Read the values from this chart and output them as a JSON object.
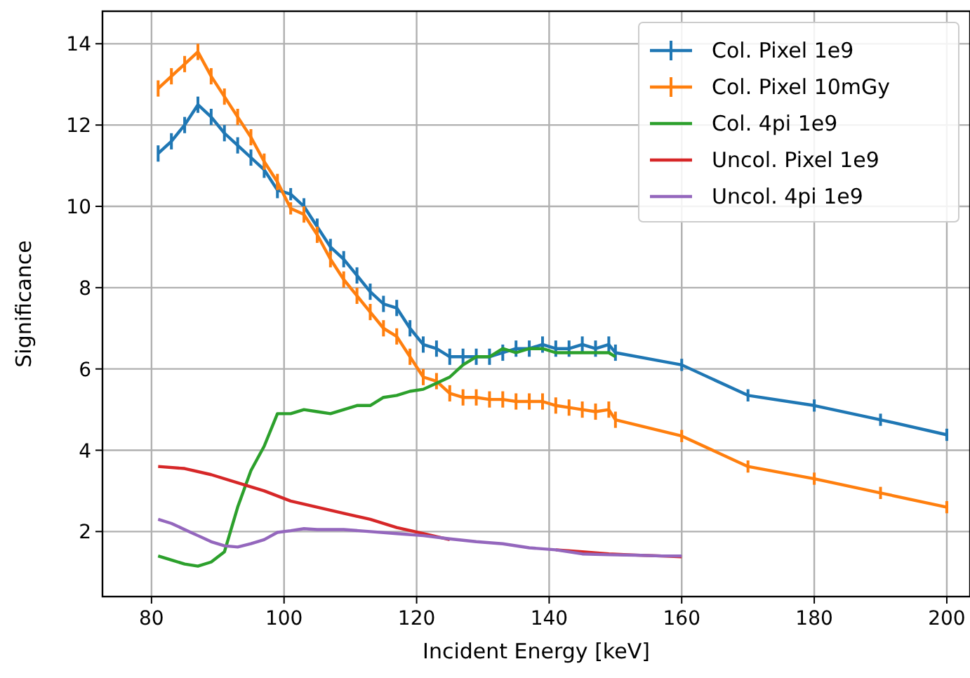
{
  "chart_data": {
    "type": "line",
    "xlabel": "Incident Energy [keV]",
    "ylabel": "Significance",
    "xlim": [
      72.6,
      203.5
    ],
    "ylim": [
      0.4,
      14.8
    ],
    "xticks": [
      80,
      100,
      120,
      140,
      160,
      180,
      200
    ],
    "yticks": [
      2,
      4,
      6,
      8,
      10,
      12,
      14
    ],
    "grid": true,
    "legend": "top right",
    "marker": "none",
    "line_style": "solid",
    "series": [
      {
        "name": "Col. Pixel 1e9",
        "color": "#1f77b4",
        "x": [
          81,
          83,
          85,
          87,
          89,
          91,
          93,
          95,
          97,
          99,
          101,
          103,
          105,
          107,
          109,
          111,
          113,
          115,
          117,
          119,
          121,
          123,
          125,
          127,
          129,
          131,
          133,
          135,
          137,
          139,
          141,
          143,
          145,
          147,
          149,
          150,
          160,
          170,
          180,
          190,
          200
        ],
        "values": [
          11.3,
          11.6,
          12.0,
          12.5,
          12.2,
          11.8,
          11.5,
          11.2,
          10.9,
          10.4,
          10.3,
          10.0,
          9.5,
          9.0,
          8.7,
          8.3,
          7.9,
          7.6,
          7.5,
          7.0,
          6.6,
          6.5,
          6.3,
          6.3,
          6.3,
          6.3,
          6.4,
          6.5,
          6.5,
          6.6,
          6.5,
          6.5,
          6.6,
          6.5,
          6.6,
          6.4,
          6.1,
          5.35,
          5.1,
          4.75,
          4.38
        ],
        "errors": [
          0.2,
          0.2,
          0.2,
          0.2,
          0.2,
          0.2,
          0.2,
          0.2,
          0.2,
          0.2,
          0.15,
          0.2,
          0.2,
          0.2,
          0.2,
          0.2,
          0.2,
          0.2,
          0.2,
          0.2,
          0.2,
          0.2,
          0.2,
          0.2,
          0.2,
          0.2,
          0.2,
          0.2,
          0.2,
          0.2,
          0.2,
          0.2,
          0.2,
          0.2,
          0.2,
          0.2,
          0.15,
          0.15,
          0.15,
          0.15,
          0.15
        ]
      },
      {
        "name": "Col. Pixel 10mGy",
        "color": "#ff7f0e",
        "x": [
          81,
          83,
          85,
          87,
          89,
          91,
          93,
          95,
          97,
          99,
          101,
          103,
          105,
          107,
          109,
          111,
          113,
          115,
          117,
          119,
          121,
          123,
          125,
          127,
          129,
          131,
          133,
          135,
          137,
          139,
          141,
          143,
          145,
          147,
          149,
          150,
          160,
          170,
          180,
          190,
          200
        ],
        "values": [
          12.9,
          13.2,
          13.5,
          13.8,
          13.2,
          12.7,
          12.2,
          11.7,
          11.1,
          10.6,
          9.95,
          9.8,
          9.3,
          8.7,
          8.2,
          7.8,
          7.4,
          7.0,
          6.8,
          6.3,
          5.8,
          5.7,
          5.4,
          5.3,
          5.3,
          5.25,
          5.25,
          5.2,
          5.2,
          5.2,
          5.1,
          5.05,
          5.0,
          4.95,
          5.0,
          4.75,
          4.35,
          3.6,
          3.3,
          2.95,
          2.6
        ],
        "errors": [
          0.2,
          0.2,
          0.2,
          0.2,
          0.2,
          0.2,
          0.2,
          0.2,
          0.2,
          0.2,
          0.15,
          0.2,
          0.2,
          0.2,
          0.2,
          0.2,
          0.2,
          0.2,
          0.2,
          0.2,
          0.2,
          0.2,
          0.2,
          0.2,
          0.2,
          0.2,
          0.2,
          0.2,
          0.2,
          0.2,
          0.2,
          0.2,
          0.2,
          0.2,
          0.2,
          0.2,
          0.15,
          0.15,
          0.15,
          0.15,
          0.15
        ]
      },
      {
        "name": "Col. 4pi 1e9",
        "color": "#2ca02c",
        "x": [
          81,
          83,
          85,
          87,
          89,
          91,
          93,
          95,
          97,
          99,
          101,
          103,
          105,
          107,
          109,
          111,
          113,
          115,
          117,
          119,
          121,
          123,
          125,
          127,
          129,
          131,
          133,
          135,
          137,
          139,
          141,
          143,
          145,
          147,
          149,
          150
        ],
        "values": [
          1.4,
          1.3,
          1.2,
          1.15,
          1.25,
          1.5,
          2.6,
          3.5,
          4.1,
          4.9,
          4.9,
          5.0,
          4.95,
          4.9,
          5.0,
          5.1,
          5.1,
          5.3,
          5.35,
          5.45,
          5.5,
          5.65,
          5.8,
          6.1,
          6.3,
          6.3,
          6.5,
          6.4,
          6.5,
          6.5,
          6.4,
          6.4,
          6.4,
          6.4,
          6.4,
          6.3
        ]
      },
      {
        "name": "Uncol. Pixel 1e9",
        "color": "#d62728",
        "x": [
          81,
          85,
          89,
          93,
          97,
          101,
          105,
          109,
          113,
          117,
          121,
          125,
          129,
          133,
          137,
          141,
          145,
          149,
          153,
          157,
          160
        ],
        "values": [
          3.6,
          3.55,
          3.4,
          3.2,
          3.0,
          2.75,
          2.6,
          2.45,
          2.3,
          2.1,
          1.95,
          1.8,
          null,
          null,
          null,
          1.55,
          1.5,
          1.45,
          1.42,
          1.4,
          1.38
        ]
      },
      {
        "name": "Uncol. 4pi 1e9",
        "color": "#9467bd",
        "x": [
          81,
          83,
          85,
          87,
          89,
          91,
          93,
          95,
          97,
          99,
          101,
          103,
          105,
          109,
          113,
          117,
          121,
          125,
          129,
          133,
          137,
          141,
          145,
          149,
          153,
          157,
          160
        ],
        "values": [
          2.3,
          2.2,
          2.05,
          1.9,
          1.75,
          1.65,
          1.62,
          1.7,
          1.8,
          1.98,
          2.02,
          2.07,
          2.05,
          2.05,
          2.0,
          1.95,
          1.9,
          1.82,
          1.75,
          1.7,
          1.6,
          1.55,
          1.45,
          1.43,
          1.42,
          1.4,
          1.4
        ]
      }
    ]
  }
}
